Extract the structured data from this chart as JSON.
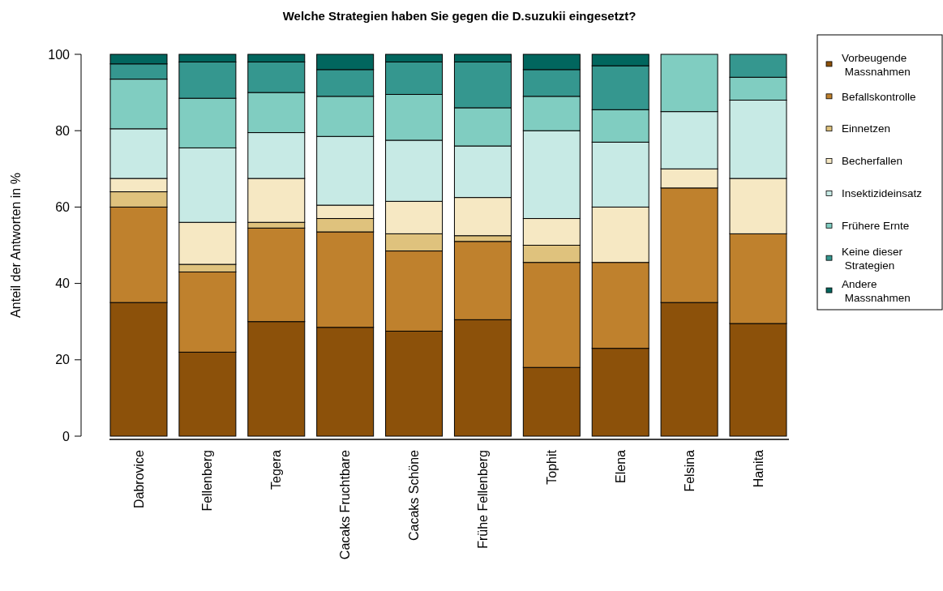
{
  "chart_data": {
    "type": "bar",
    "stacked": true,
    "title": "Welche Strategien haben Sie gegen die D.suzukii eingesetzt?",
    "ylabel": "Anteil der Antworten in %",
    "categories": [
      "Dabrovice",
      "Fellenberg",
      "Tegera",
      "Cacaks Fruchtbare",
      "Cacaks Schöne",
      "Frühe Fellenberg",
      "Tophit",
      "Elena",
      "Felsina",
      "Hanita"
    ],
    "series": [
      {
        "name": "Vorbeugende Massnahmen",
        "color": "#8c510a",
        "values": [
          35,
          22,
          30,
          28.5,
          27.5,
          30.5,
          18,
          23,
          35,
          29.5
        ]
      },
      {
        "name": "Befallskontrolle",
        "color": "#bf812d",
        "values": [
          25,
          21,
          24.5,
          25,
          21,
          20.5,
          27.5,
          22.5,
          30,
          23.5
        ]
      },
      {
        "name": "Einnetzen",
        "color": "#dfc27d",
        "values": [
          4,
          2,
          1.5,
          3.5,
          4.5,
          1.5,
          4.5,
          0,
          0,
          0
        ]
      },
      {
        "name": "Becherfallen",
        "color": "#f6e8c3",
        "values": [
          3.5,
          11,
          11.5,
          3.5,
          8.5,
          10,
          7,
          14.5,
          5,
          14.5
        ]
      },
      {
        "name": "Insektizideinsatz",
        "color": "#c7eae5",
        "values": [
          13,
          19.5,
          12,
          18,
          16,
          13.5,
          23,
          17,
          15,
          20.5
        ]
      },
      {
        "name": "Frühere Ernte",
        "color": "#80cdc1",
        "values": [
          13,
          13,
          10.5,
          10.5,
          12,
          10,
          9,
          8.5,
          15,
          6
        ]
      },
      {
        "name": "Keine dieser Strategien",
        "color": "#35978f",
        "values": [
          4,
          9.5,
          8,
          7,
          8.5,
          12,
          7,
          11.5,
          0,
          6
        ]
      },
      {
        "name": "Andere Massnahmen",
        "color": "#01665e",
        "values": [
          2.5,
          2,
          2,
          4,
          2,
          2,
          4,
          3,
          0,
          0
        ]
      }
    ],
    "ylim": [
      0,
      100
    ],
    "yticks": [
      0,
      20,
      40,
      60,
      80,
      100
    ],
    "legend": "right"
  }
}
